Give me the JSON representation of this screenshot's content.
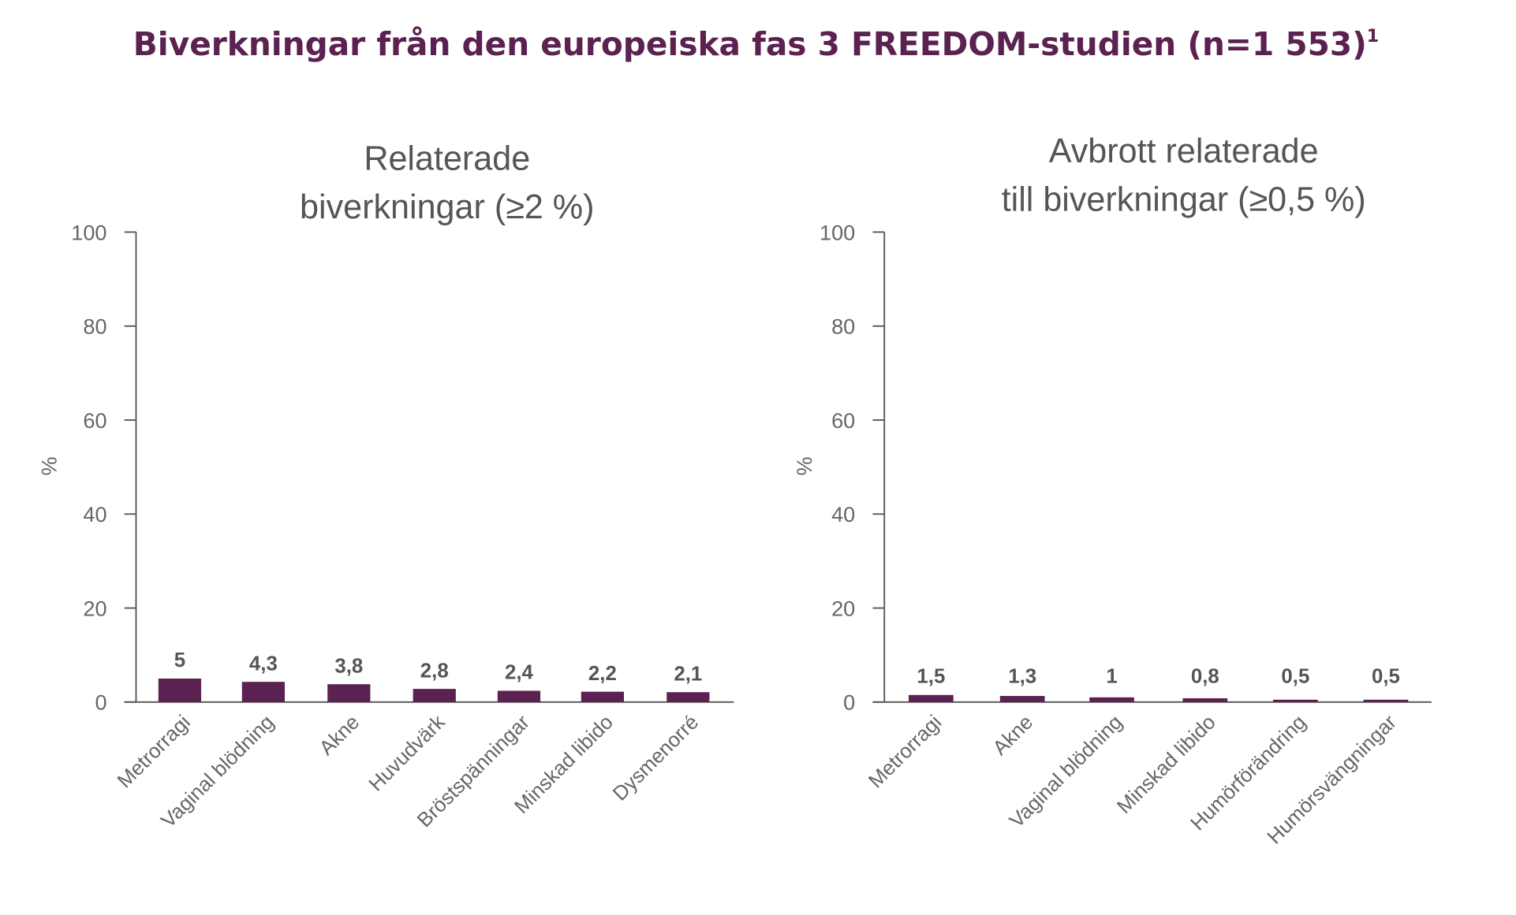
{
  "title": "Biverkningar från den europeiska fas 3 FREEDOM-studien (n=1 553)",
  "title_superscript": "1",
  "colors": {
    "bar": "#5b2150",
    "title": "#5b2150",
    "text": "#555555",
    "axis": "#555555"
  },
  "chart_data": [
    {
      "type": "bar",
      "title": [
        "Relaterade",
        "biverkningar (≥2 %)"
      ],
      "ylabel": "%",
      "ylim": [
        0,
        100
      ],
      "yticks": [
        0,
        20,
        40,
        60,
        80,
        100
      ],
      "categories": [
        "Metrorragi",
        "Vaginal blödning",
        "Akne",
        "Huvudvärk",
        "Bröstspänningar",
        "Minskad libido",
        "Dysmenorré"
      ],
      "values": [
        5,
        4.3,
        3.8,
        2.8,
        2.4,
        2.2,
        2.1
      ],
      "value_labels": [
        "5",
        "4,3",
        "3,8",
        "2,8",
        "2,4",
        "2,2",
        "2,1"
      ],
      "grid": false
    },
    {
      "type": "bar",
      "title": [
        "Avbrott relaterade",
        "till biverkningar (≥0,5 %)"
      ],
      "ylabel": "%",
      "ylim": [
        0,
        100
      ],
      "yticks": [
        0,
        20,
        40,
        60,
        80,
        100
      ],
      "categories": [
        "Metrorragi",
        "Akne",
        "Vaginal blödning",
        "Minskad libido",
        "Humörförändring",
        "Humörsvängningar"
      ],
      "values": [
        1.5,
        1.3,
        1,
        0.8,
        0.5,
        0.5
      ],
      "value_labels": [
        "1,5",
        "1,3",
        "1",
        "0,8",
        "0,5",
        "0,5"
      ],
      "grid": false
    }
  ]
}
